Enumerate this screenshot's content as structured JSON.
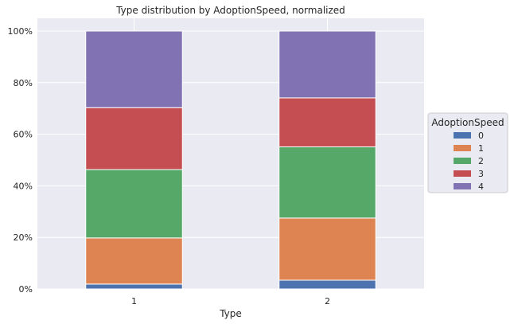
{
  "chart_data": {
    "type": "bar",
    "stacked": true,
    "title": "Type distribution by AdoptionSpeed, normalized",
    "xlabel": "Type",
    "ylabel": "",
    "categories": [
      "1",
      "2"
    ],
    "ylim": [
      0,
      1
    ],
    "yticks": [
      {
        "value": 0,
        "label": "0%"
      },
      {
        "value": 0.2,
        "label": "20%"
      },
      {
        "value": 0.4,
        "label": "40%"
      },
      {
        "value": 0.6,
        "label": "60%"
      },
      {
        "value": 0.8,
        "label": "80%"
      },
      {
        "value": 1.0,
        "label": "100%"
      }
    ],
    "grid": true,
    "legend": {
      "title": "AdoptionSpeed",
      "placement": "center-right-outside"
    },
    "series": [
      {
        "name": "0",
        "color": "#4c72b0",
        "values": [
          0.019,
          0.034
        ]
      },
      {
        "name": "1",
        "color": "#dd8452",
        "values": [
          0.179,
          0.241
        ]
      },
      {
        "name": "2",
        "color": "#55a868",
        "values": [
          0.265,
          0.276
        ]
      },
      {
        "name": "3",
        "color": "#c44e52",
        "values": [
          0.24,
          0.19
        ]
      },
      {
        "name": "4",
        "color": "#8172b3",
        "values": [
          0.297,
          0.259
        ]
      }
    ],
    "colors": {
      "plot_background": "#eaeaf2",
      "grid": "#ffffff"
    }
  }
}
